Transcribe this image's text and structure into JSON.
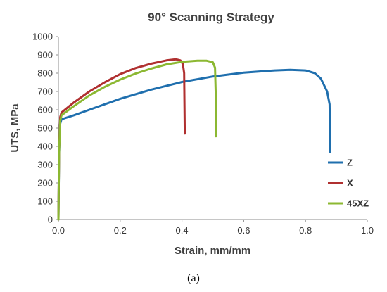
{
  "chart_data": {
    "type": "line",
    "title": "90° Scanning Strategy",
    "xlabel": "Strain, mm/mm",
    "ylabel": "UTS, MPa",
    "xlim": [
      0.0,
      1.0
    ],
    "ylim": [
      0,
      1000
    ],
    "xticks": [
      "0.0",
      "0.2",
      "0.4",
      "0.6",
      "0.8",
      "1.0"
    ],
    "yticks": [
      "0",
      "100",
      "200",
      "300",
      "400",
      "500",
      "600",
      "700",
      "800",
      "900",
      "1000"
    ],
    "grid": false,
    "legend_position": "right",
    "series": [
      {
        "name": "Z",
        "color": "#1f6fae",
        "points": [
          [
            0.0,
            0
          ],
          [
            0.002,
            350
          ],
          [
            0.005,
            520
          ],
          [
            0.01,
            548
          ],
          [
            0.05,
            570
          ],
          [
            0.1,
            600
          ],
          [
            0.2,
            660
          ],
          [
            0.3,
            710
          ],
          [
            0.4,
            752
          ],
          [
            0.5,
            782
          ],
          [
            0.6,
            803
          ],
          [
            0.7,
            815
          ],
          [
            0.75,
            818
          ],
          [
            0.8,
            815
          ],
          [
            0.83,
            800
          ],
          [
            0.85,
            770
          ],
          [
            0.87,
            700
          ],
          [
            0.878,
            630
          ],
          [
            0.879,
            500
          ],
          [
            0.88,
            370
          ]
        ]
      },
      {
        "name": "X",
        "color": "#b03030",
        "points": [
          [
            0.0,
            0
          ],
          [
            0.002,
            380
          ],
          [
            0.006,
            560
          ],
          [
            0.01,
            585
          ],
          [
            0.05,
            640
          ],
          [
            0.1,
            700
          ],
          [
            0.15,
            750
          ],
          [
            0.2,
            795
          ],
          [
            0.25,
            828
          ],
          [
            0.3,
            852
          ],
          [
            0.35,
            870
          ],
          [
            0.38,
            876
          ],
          [
            0.395,
            870
          ],
          [
            0.403,
            850
          ],
          [
            0.407,
            800
          ],
          [
            0.408,
            650
          ],
          [
            0.409,
            470
          ]
        ]
      },
      {
        "name": "45XZ",
        "color": "#8cb832",
        "points": [
          [
            0.0,
            0
          ],
          [
            0.002,
            360
          ],
          [
            0.006,
            540
          ],
          [
            0.01,
            570
          ],
          [
            0.05,
            620
          ],
          [
            0.1,
            678
          ],
          [
            0.15,
            725
          ],
          [
            0.2,
            765
          ],
          [
            0.25,
            798
          ],
          [
            0.3,
            825
          ],
          [
            0.35,
            848
          ],
          [
            0.4,
            862
          ],
          [
            0.45,
            868
          ],
          [
            0.48,
            868
          ],
          [
            0.5,
            860
          ],
          [
            0.507,
            830
          ],
          [
            0.509,
            700
          ],
          [
            0.51,
            455
          ]
        ]
      }
    ]
  },
  "caption": "(a)"
}
